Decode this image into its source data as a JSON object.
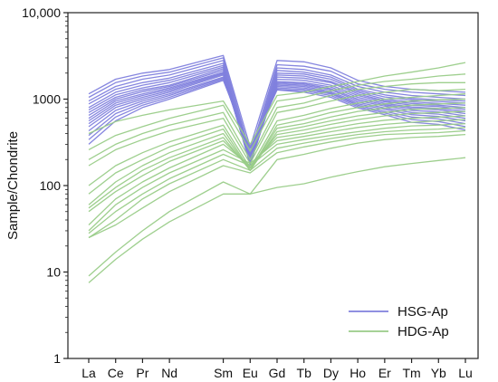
{
  "chart_data": {
    "type": "line",
    "title": "",
    "xlabel": "",
    "ylabel": "Sample/Chondrite",
    "yscale": "log",
    "ylim": [
      1,
      10000
    ],
    "y_ticks": [
      {
        "value": 1,
        "label": "1"
      },
      {
        "value": 10,
        "label": "10"
      },
      {
        "value": 100,
        "label": "100"
      },
      {
        "value": 1000,
        "label": "1000"
      },
      {
        "value": 10000,
        "label": "10,000"
      }
    ],
    "grid": false,
    "legend_position": "bottom-right",
    "categories": [
      "La",
      "Ce",
      "Pr",
      "Nd",
      "Sm",
      "Eu",
      "Gd",
      "Tb",
      "Dy",
      "Ho",
      "Er",
      "Tm",
      "Yb",
      "Lu"
    ],
    "category_positions": [
      0,
      1,
      2,
      3,
      5,
      6,
      7,
      8,
      9,
      10,
      11,
      12,
      13,
      14
    ],
    "groups": [
      {
        "name": "HSG-Ap",
        "color": "#8080dd",
        "series": [
          [
            1150,
            1700,
            2000,
            2200,
            3200,
            280,
            2800,
            2700,
            2300,
            1650,
            1400,
            1300,
            1250,
            1200
          ],
          [
            1050,
            1550,
            1850,
            2050,
            3000,
            240,
            2500,
            2400,
            2100,
            1500,
            1300,
            1200,
            1150,
            1100
          ],
          [
            950,
            1400,
            1700,
            1900,
            2800,
            220,
            2300,
            2200,
            1900,
            1400,
            1200,
            1100,
            1050,
            1000
          ],
          [
            880,
            1300,
            1550,
            1750,
            2600,
            200,
            2150,
            2050,
            1800,
            1300,
            1120,
            1020,
            980,
            950
          ],
          [
            800,
            1200,
            1450,
            1650,
            2450,
            190,
            2000,
            1950,
            1700,
            1250,
            1060,
            980,
            940,
            900
          ],
          [
            750,
            1120,
            1350,
            1550,
            2350,
            185,
            1900,
            1850,
            1600,
            1200,
            1000,
            930,
            890,
            850
          ],
          [
            700,
            1050,
            1280,
            1450,
            2250,
            180,
            1800,
            1750,
            1550,
            1150,
            960,
            890,
            850,
            800
          ],
          [
            650,
            1000,
            1220,
            1400,
            2150,
            175,
            1700,
            1650,
            1450,
            1100,
            930,
            850,
            820,
            760
          ],
          [
            600,
            950,
            1150,
            1350,
            2050,
            175,
            1600,
            1550,
            1380,
            1050,
            890,
            810,
            780,
            720
          ],
          [
            560,
            900,
            1100,
            1300,
            2000,
            180,
            1550,
            1500,
            1320,
            1000,
            860,
            780,
            750,
            680
          ],
          [
            520,
            850,
            1050,
            1250,
            1950,
            190,
            1500,
            1450,
            1280,
            960,
            830,
            740,
            710,
            640
          ],
          [
            480,
            800,
            1000,
            1200,
            1900,
            200,
            1450,
            1400,
            1220,
            920,
            790,
            700,
            670,
            600
          ],
          [
            430,
            740,
            950,
            1150,
            1800,
            210,
            1400,
            1350,
            1180,
            880,
            760,
            660,
            630,
            560
          ],
          [
            380,
            680,
            900,
            1100,
            1750,
            230,
            1350,
            1300,
            1150,
            850,
            720,
            620,
            590,
            520
          ],
          [
            340,
            620,
            850,
            1050,
            1700,
            250,
            1300,
            1250,
            1100,
            820,
            690,
            580,
            550,
            480
          ],
          [
            300,
            560,
            800,
            1000,
            1650,
            270,
            1280,
            1200,
            1050,
            790,
            660,
            540,
            510,
            440
          ]
        ]
      },
      {
        "name": "HDG-Ap",
        "color": "#99cc88",
        "series": [
          [
            400,
            550,
            650,
            750,
            950,
            300,
            1100,
            1200,
            1400,
            1600,
            1850,
            2050,
            2300,
            2650
          ],
          [
            260,
            380,
            480,
            600,
            850,
            250,
            950,
            1050,
            1250,
            1450,
            1600,
            1700,
            1850,
            1950
          ],
          [
            200,
            300,
            400,
            500,
            700,
            200,
            800,
            900,
            1100,
            1300,
            1400,
            1500,
            1550,
            1550
          ],
          [
            170,
            260,
            340,
            430,
            600,
            180,
            700,
            800,
            950,
            1100,
            1200,
            1300,
            1250,
            1300
          ],
          [
            100,
            170,
            240,
            320,
            500,
            160,
            560,
            650,
            780,
            900,
            1000,
            1050,
            1100,
            1150
          ],
          [
            80,
            140,
            200,
            280,
            450,
            150,
            500,
            580,
            700,
            800,
            880,
            950,
            980,
            1000
          ],
          [
            60,
            110,
            170,
            240,
            400,
            150,
            460,
            520,
            620,
            720,
            790,
            850,
            880,
            900
          ],
          [
            55,
            95,
            150,
            210,
            360,
            150,
            420,
            480,
            560,
            640,
            700,
            760,
            780,
            800
          ],
          [
            50,
            85,
            130,
            190,
            330,
            160,
            390,
            440,
            510,
            580,
            640,
            680,
            700,
            720
          ],
          [
            35,
            70,
            110,
            160,
            300,
            170,
            360,
            400,
            460,
            520,
            570,
            600,
            620,
            640
          ],
          [
            30,
            60,
            95,
            140,
            260,
            180,
            330,
            370,
            420,
            470,
            510,
            540,
            560,
            580
          ],
          [
            28,
            50,
            80,
            120,
            230,
            170,
            300,
            340,
            380,
            420,
            460,
            490,
            500,
            520
          ],
          [
            25,
            40,
            70,
            105,
            200,
            150,
            270,
            310,
            350,
            390,
            420,
            440,
            450,
            470
          ],
          [
            25,
            35,
            55,
            85,
            170,
            140,
            240,
            280,
            320,
            360,
            390,
            400,
            410,
            430
          ],
          [
            9,
            17,
            30,
            50,
            110,
            80,
            200,
            230,
            270,
            310,
            340,
            360,
            370,
            390
          ],
          [
            7.5,
            14,
            24,
            38,
            80,
            80,
            95,
            105,
            125,
            145,
            165,
            180,
            195,
            210
          ]
        ]
      }
    ]
  }
}
